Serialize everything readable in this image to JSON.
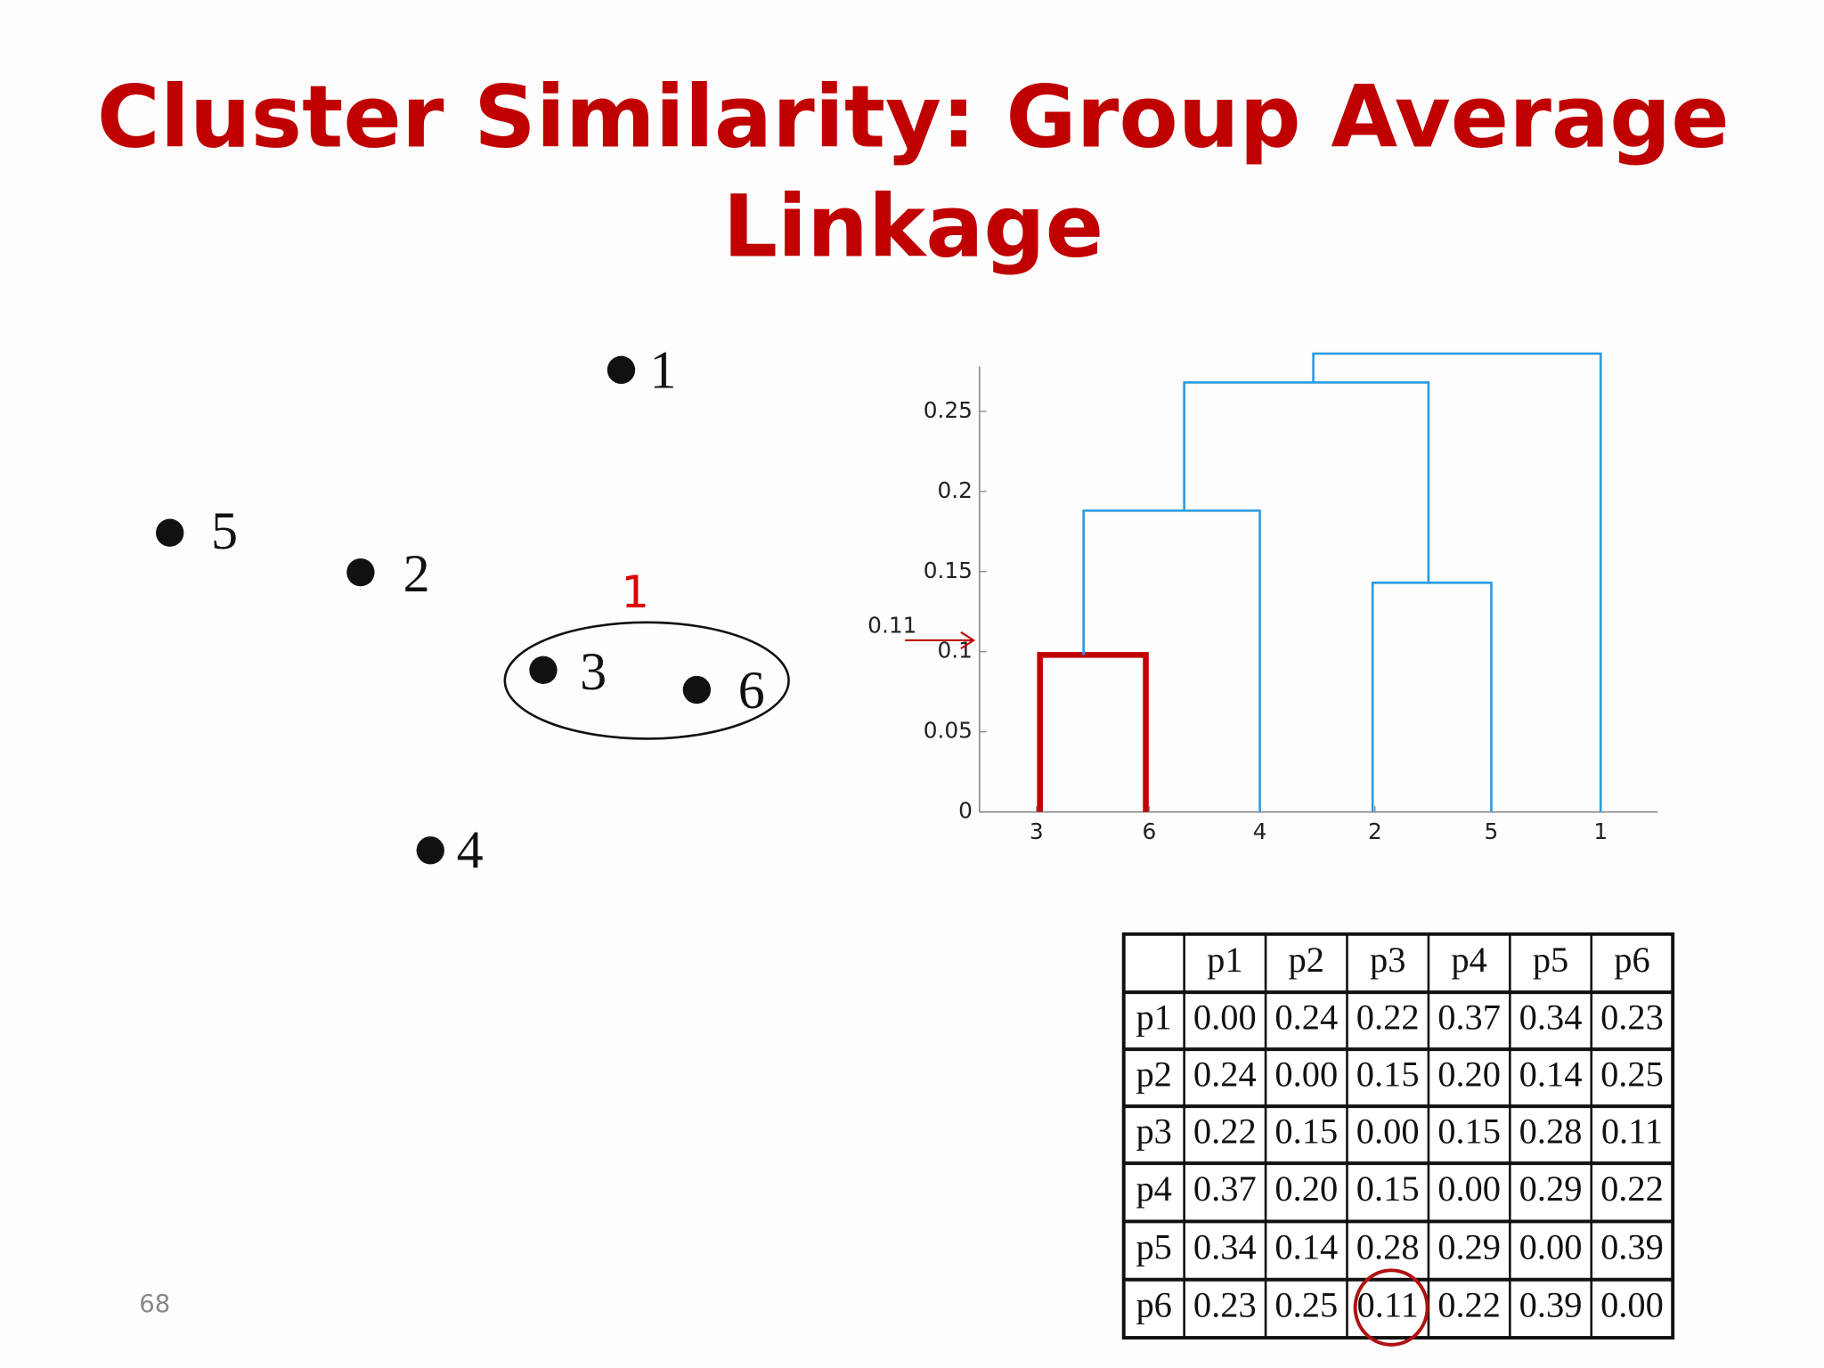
{
  "title_lines": [
    "Cluster Similarity: Group Average",
    "Linkage"
  ],
  "points": [
    "1",
    "5",
    "2",
    "3",
    "6",
    "4"
  ],
  "cluster_label": "1",
  "dendrogram": {
    "ylim": [
      0,
      0.278
    ],
    "yticks": [
      0,
      0.05,
      0.1,
      0.15,
      0.2,
      0.25
    ],
    "leaves": [
      "3",
      "6",
      "4",
      "2",
      "5",
      "1"
    ],
    "merge_heights": [
      0.098,
      0.188,
      0.143,
      0.268,
      0.286
    ],
    "arrow_value": 0.11
  },
  "table": {
    "header": [
      "p1",
      "p2",
      "p3",
      "p4",
      "p5",
      "p6"
    ],
    "rows": [
      {
        "label": "p1",
        "values": [
          "0.00",
          "0.24",
          "0.22",
          "0.37",
          "0.34",
          "0.23"
        ]
      },
      {
        "label": "p2",
        "values": [
          "0.24",
          "0.00",
          "0.15",
          "0.20",
          "0.14",
          "0.25"
        ]
      },
      {
        "label": "p3",
        "values": [
          "0.22",
          "0.15",
          "0.00",
          "0.15",
          "0.28",
          "0.11"
        ]
      },
      {
        "label": "p4",
        "values": [
          "0.37",
          "0.20",
          "0.15",
          "0.00",
          "0.29",
          "0.22"
        ]
      },
      {
        "label": "p5",
        "values": [
          "0.34",
          "0.14",
          "0.28",
          "0.29",
          "0.00",
          "0.39"
        ]
      },
      {
        "label": "p6",
        "values": [
          "0.23",
          "0.25",
          "0.11",
          "0.22",
          "0.39",
          "0.00"
        ]
      }
    ]
  },
  "page_number": "68"
}
